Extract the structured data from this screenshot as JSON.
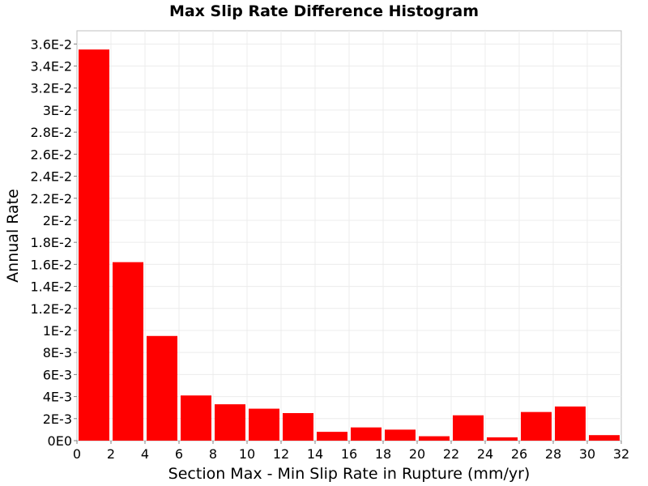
{
  "chart_data": {
    "type": "bar",
    "title": "Max Slip Rate Difference Histogram",
    "xlabel": "Section Max - Min Slip Rate in Rupture (mm/yr)",
    "ylabel": "Annual Rate",
    "xlim": [
      0,
      32
    ],
    "ylim": [
      0,
      0.0372
    ],
    "bin_width": 2,
    "x": [
      1,
      3,
      5,
      7,
      9,
      11,
      13,
      15,
      17,
      19,
      21,
      23,
      25,
      27,
      29,
      31
    ],
    "values": [
      0.0355,
      0.0162,
      0.0095,
      0.0041,
      0.0033,
      0.0029,
      0.0025,
      0.0008,
      0.0012,
      0.001,
      0.0004,
      0.0023,
      0.0003,
      0.0026,
      0.0031,
      0.0005
    ],
    "bar_color": "#ff0000",
    "xticks": [
      {
        "value": 0,
        "label": "0"
      },
      {
        "value": 2,
        "label": "2"
      },
      {
        "value": 4,
        "label": "4"
      },
      {
        "value": 6,
        "label": "6"
      },
      {
        "value": 8,
        "label": "8"
      },
      {
        "value": 10,
        "label": "10"
      },
      {
        "value": 12,
        "label": "12"
      },
      {
        "value": 14,
        "label": "14"
      },
      {
        "value": 16,
        "label": "16"
      },
      {
        "value": 18,
        "label": "18"
      },
      {
        "value": 20,
        "label": "20"
      },
      {
        "value": 22,
        "label": "22"
      },
      {
        "value": 24,
        "label": "24"
      },
      {
        "value": 26,
        "label": "26"
      },
      {
        "value": 28,
        "label": "28"
      },
      {
        "value": 30,
        "label": "30"
      },
      {
        "value": 32,
        "label": "32"
      }
    ],
    "yticks": [
      {
        "value": 0,
        "label": "0E0"
      },
      {
        "value": 0.002,
        "label": "2E-3"
      },
      {
        "value": 0.004,
        "label": "4E-3"
      },
      {
        "value": 0.006,
        "label": "6E-3"
      },
      {
        "value": 0.008,
        "label": "8E-3"
      },
      {
        "value": 0.01,
        "label": "1E-2"
      },
      {
        "value": 0.012,
        "label": "1.2E-2"
      },
      {
        "value": 0.014,
        "label": "1.4E-2"
      },
      {
        "value": 0.016,
        "label": "1.6E-2"
      },
      {
        "value": 0.018,
        "label": "1.8E-2"
      },
      {
        "value": 0.02,
        "label": "2E-2"
      },
      {
        "value": 0.022,
        "label": "2.2E-2"
      },
      {
        "value": 0.024,
        "label": "2.4E-2"
      },
      {
        "value": 0.026,
        "label": "2.6E-2"
      },
      {
        "value": 0.028,
        "label": "2.8E-2"
      },
      {
        "value": 0.03,
        "label": "3E-2"
      },
      {
        "value": 0.032,
        "label": "3.2E-2"
      },
      {
        "value": 0.034,
        "label": "3.4E-2"
      },
      {
        "value": 0.036,
        "label": "3.6E-2"
      }
    ],
    "grid": true,
    "legend": "none"
  }
}
